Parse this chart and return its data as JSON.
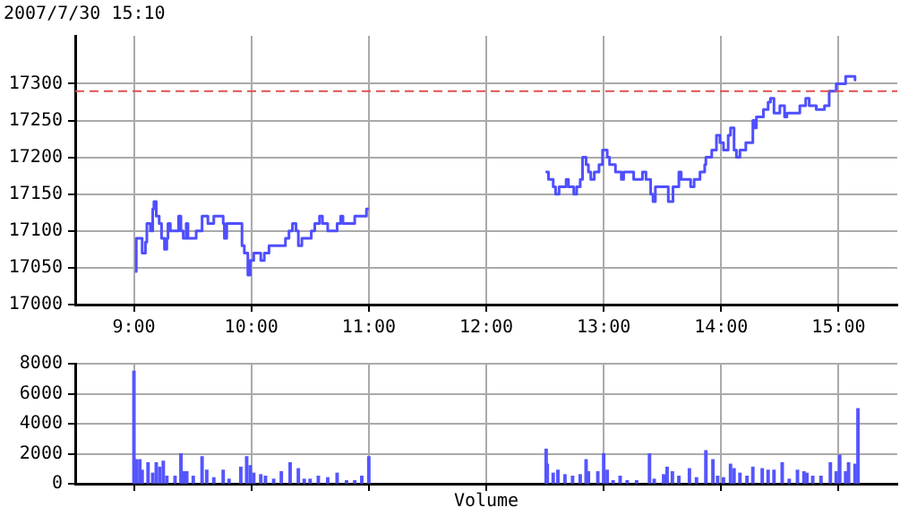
{
  "chart_data": [
    {
      "type": "step",
      "subtitle": "2007/7/30 15:10",
      "x": [
        9.01,
        9.02,
        9.06,
        9.07,
        9.098,
        9.11,
        9.14,
        9.16,
        9.17,
        9.19,
        9.215,
        9.235,
        9.26,
        9.28,
        9.29,
        9.31,
        9.38,
        9.4,
        9.42,
        9.445,
        9.46,
        9.53,
        9.58,
        9.63,
        9.68,
        9.76,
        9.77,
        9.79,
        9.92,
        9.94,
        9.97,
        9.99,
        10.02,
        10.08,
        10.11,
        10.15,
        10.29,
        10.32,
        10.35,
        10.38,
        10.4,
        10.43,
        10.49,
        10.51,
        10.54,
        10.58,
        10.605,
        10.65,
        10.73,
        10.76,
        10.78,
        10.88,
        10.98,
        11.0,
        11.75,
        12.505,
        12.53,
        12.57,
        12.59,
        12.62,
        12.68,
        12.7,
        12.745,
        12.77,
        12.8,
        12.82,
        12.85,
        12.87,
        12.89,
        12.92,
        12.96,
        12.99,
        13.03,
        13.05,
        13.1,
        13.15,
        13.17,
        13.255,
        13.33,
        13.36,
        13.4,
        13.42,
        13.44,
        13.55,
        13.59,
        13.64,
        13.66,
        13.74,
        13.77,
        13.82,
        13.86,
        13.87,
        13.92,
        13.96,
        13.99,
        14.02,
        14.06,
        14.08,
        14.11,
        14.13,
        14.16,
        14.21,
        14.27,
        14.29,
        14.3,
        14.36,
        14.4,
        14.42,
        14.45,
        14.5,
        14.54,
        14.56,
        14.64,
        14.67,
        14.72,
        14.75,
        14.81,
        14.88,
        14.92,
        14.98,
        15.06,
        15.14,
        15.15
      ],
      "series": [
        {
          "color": "#4f4fff",
          "values": [
            17045,
            17090,
            17090,
            17070,
            17085,
            17110,
            17100,
            17130,
            17140,
            17120,
            17110,
            17090,
            17075,
            17090,
            17110,
            17100,
            17120,
            17100,
            17090,
            17110,
            17090,
            17100,
            17120,
            17110,
            17120,
            17110,
            17090,
            17110,
            17080,
            17070,
            17040,
            17060,
            17070,
            17060,
            17070,
            17080,
            17090,
            17100,
            17110,
            17100,
            17080,
            17090,
            17090,
            17100,
            17110,
            17120,
            17110,
            17100,
            17110,
            17120,
            17110,
            17120,
            17130,
            17130,
            null,
            17180,
            17170,
            17160,
            17150,
            17160,
            17170,
            17160,
            17150,
            17160,
            17170,
            17200,
            17190,
            17180,
            17170,
            17180,
            17190,
            17210,
            17200,
            17190,
            17180,
            17170,
            17180,
            17170,
            17180,
            17170,
            17150,
            17140,
            17160,
            17140,
            17160,
            17180,
            17170,
            17160,
            17170,
            17180,
            17190,
            17200,
            17210,
            17230,
            17220,
            17210,
            17230,
            17240,
            17210,
            17200,
            17210,
            17220,
            17250,
            17240,
            17255,
            17265,
            17275,
            17280,
            17260,
            17270,
            17255,
            17260,
            17260,
            17270,
            17280,
            17270,
            17265,
            17270,
            17290,
            17300,
            17310,
            17305,
            17305
          ]
        }
      ],
      "xlim": [
        8.5,
        15.5
      ],
      "xticks": [
        {
          "value": 9,
          "label": "9:00"
        },
        {
          "value": 10,
          "label": "10:00"
        },
        {
          "value": 11,
          "label": "11:00"
        },
        {
          "value": 12,
          "label": "12:00"
        },
        {
          "value": 13,
          "label": "13:00"
        },
        {
          "value": 14,
          "label": "14:00"
        },
        {
          "value": 15,
          "label": "15:00"
        }
      ],
      "ylim": [
        17000,
        17365
      ],
      "yticks": [
        17000,
        17050,
        17100,
        17150,
        17200,
        17250,
        17300
      ],
      "grid": true,
      "ref_lines": [
        {
          "axis": "y",
          "value": 17290,
          "color": "#e05050",
          "line_style": "dashed"
        }
      ]
    },
    {
      "type": "bar",
      "xlabel": "Volume",
      "x": [
        9.0,
        9.02,
        9.05,
        9.07,
        9.12,
        9.16,
        9.19,
        9.22,
        9.25,
        9.28,
        9.35,
        9.4,
        9.43,
        9.45,
        9.505,
        9.58,
        9.62,
        9.68,
        9.76,
        9.81,
        9.91,
        9.96,
        9.99,
        10.02,
        10.08,
        10.12,
        10.19,
        10.255,
        10.33,
        10.4,
        10.45,
        10.5,
        10.57,
        10.65,
        10.73,
        10.81,
        10.88,
        10.94,
        11.0,
        12.51,
        12.52,
        12.57,
        12.61,
        12.67,
        12.735,
        12.8,
        12.85,
        12.87,
        12.95,
        13.0,
        13.03,
        13.08,
        13.14,
        13.2,
        13.28,
        13.39,
        13.43,
        13.51,
        13.54,
        13.585,
        13.64,
        13.73,
        13.79,
        13.87,
        13.93,
        13.97,
        14.02,
        14.08,
        14.11,
        14.16,
        14.22,
        14.27,
        14.35,
        14.4,
        14.45,
        14.52,
        14.58,
        14.65,
        14.705,
        14.73,
        14.78,
        14.85,
        14.93,
        14.98,
        15.01,
        15.06,
        15.085,
        15.14,
        15.165
      ],
      "series": [
        {
          "color": "#5555ff",
          "values": [
            7500,
            1600,
            1600,
            900,
            1400,
            700,
            1400,
            1100,
            1500,
            500,
            500,
            2000,
            800,
            800,
            500,
            1800,
            900,
            400,
            900,
            300,
            1100,
            1800,
            1200,
            700,
            600,
            500,
            300,
            800,
            1400,
            1000,
            300,
            300,
            500,
            400,
            700,
            200,
            200,
            500,
            1800,
            2300,
            1300,
            700,
            900,
            600,
            500,
            600,
            1600,
            800,
            800,
            2000,
            900,
            200,
            500,
            200,
            200,
            2000,
            300,
            600,
            1100,
            800,
            500,
            1000,
            400,
            2200,
            1600,
            500,
            400,
            1300,
            1000,
            700,
            500,
            1100,
            1000,
            900,
            900,
            1400,
            300,
            900,
            800,
            700,
            500,
            500,
            1400,
            800,
            1900,
            800,
            1400,
            1300,
            5000
          ]
        }
      ],
      "xlim": [
        8.5,
        15.5
      ],
      "xticks": [
        {
          "value": 9,
          "label": null
        },
        {
          "value": 10,
          "label": null
        },
        {
          "value": 11,
          "label": null
        },
        {
          "value": 12,
          "label": null
        },
        {
          "value": 13,
          "label": null
        },
        {
          "value": 14,
          "label": null
        },
        {
          "value": 15,
          "label": null
        }
      ],
      "ylim": [
        0,
        8000
      ],
      "yticks": [
        0,
        2000,
        4000,
        6000,
        8000
      ],
      "grid": true,
      "tick_labels": "y"
    }
  ]
}
